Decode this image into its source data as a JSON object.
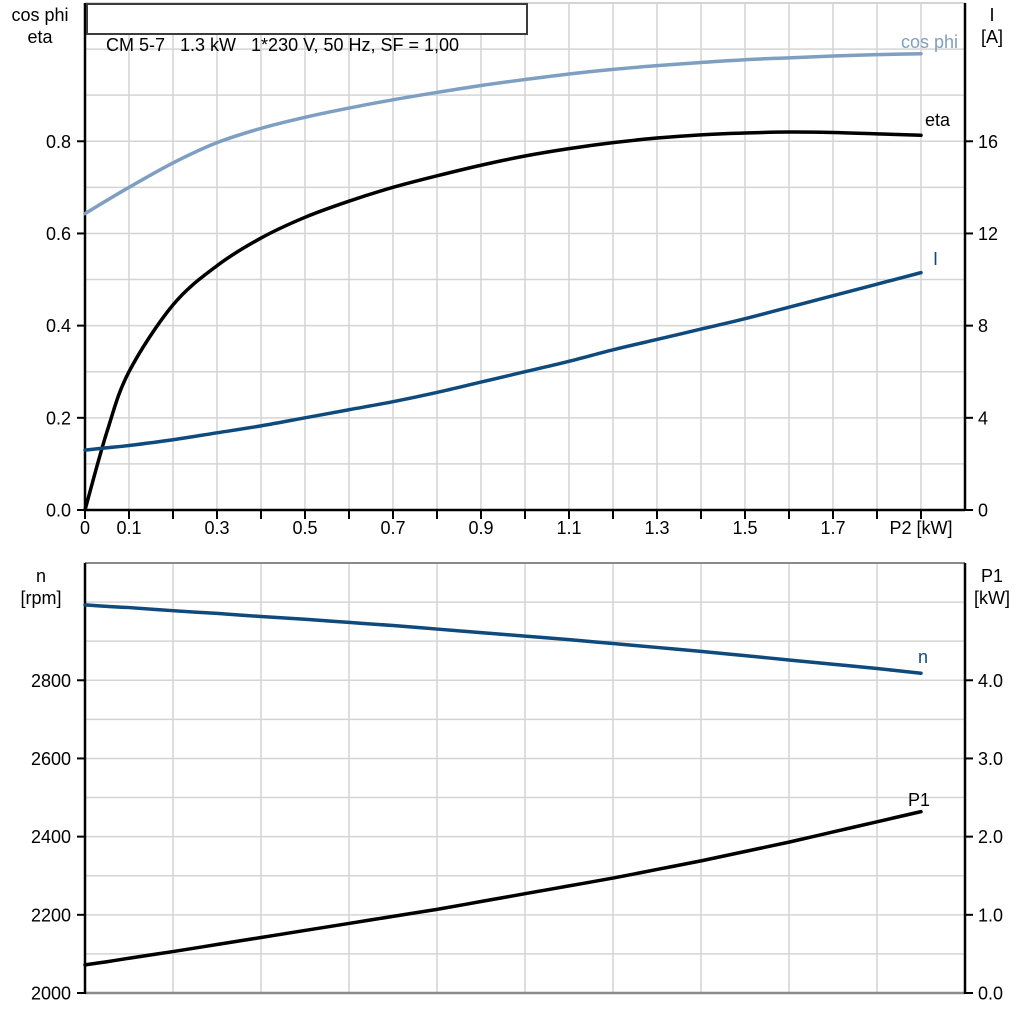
{
  "title": "CM 5-7   1.3 kW   1*230 V, 50 Hz, SF = 1,00",
  "colors": {
    "light_blue": "#7e9fc1",
    "dark_blue": "#0f4a7d",
    "black": "#000000",
    "gridline": "#d4d4d4",
    "gray_frame": "#8a8a8a"
  },
  "upper_left_axis_title": "cos phi\neta",
  "upper_right_axis_title": "I\n[A]",
  "lower_left_axis_title": "n\n[rpm]",
  "lower_right_axis_title": "P1\n[kW]",
  "chart_data": [
    {
      "type": "line",
      "title": "CM 5-7   1.3 kW   1*230 V, 50 Hz, SF = 1,00",
      "xlabel": "P2 [kW]",
      "xlim": [
        0,
        2.0
      ],
      "grid_x_step": 0.1,
      "x_tick_step": 0.1,
      "x_tick_labels": [
        {
          "v": 0,
          "t": "0"
        },
        {
          "v": 0.1,
          "t": "0.1"
        },
        {
          "v": 0.3,
          "t": "0.3"
        },
        {
          "v": 0.5,
          "t": "0.5"
        },
        {
          "v": 0.7,
          "t": "0.7"
        },
        {
          "v": 0.9,
          "t": "0.9"
        },
        {
          "v": 1.1,
          "t": "1.1"
        },
        {
          "v": 1.3,
          "t": "1.3"
        },
        {
          "v": 1.5,
          "t": "1.5"
        },
        {
          "v": 1.7,
          "t": "1.7"
        }
      ],
      "xlabel_at": 1.9,
      "left_axis": {
        "label": "cos phi / eta",
        "lim": [
          0,
          1.1
        ],
        "grid_step": 0.1,
        "ticks": [
          {
            "v": 0.0,
            "t": "0.0"
          },
          {
            "v": 0.2,
            "t": "0.2"
          },
          {
            "v": 0.4,
            "t": "0.4"
          },
          {
            "v": 0.6,
            "t": "0.6"
          },
          {
            "v": 0.8,
            "t": "0.8"
          }
        ]
      },
      "right_axis": {
        "label": "I [A]",
        "lim": [
          0,
          22
        ],
        "ticks": [
          {
            "v": 0,
            "t": "0"
          },
          {
            "v": 4,
            "t": "4"
          },
          {
            "v": 8,
            "t": "8"
          },
          {
            "v": 12,
            "t": "12"
          },
          {
            "v": 16,
            "t": "16"
          }
        ]
      },
      "x": [
        0,
        0.05,
        0.1,
        0.2,
        0.3,
        0.4,
        0.5,
        0.6,
        0.7,
        0.8,
        0.9,
        1.0,
        1.1,
        1.2,
        1.3,
        1.4,
        1.5,
        1.6,
        1.7,
        1.8,
        1.9
      ],
      "series": [
        {
          "name": "cos phi",
          "axis": "left",
          "color": "#7e9fc1",
          "label_x": 958,
          "label_y": 48,
          "values": [
            0.643,
            0.672,
            0.7,
            0.753,
            0.797,
            0.828,
            0.852,
            0.872,
            0.89,
            0.906,
            0.921,
            0.934,
            0.946,
            0.956,
            0.964,
            0.971,
            0.977,
            0.981,
            0.985,
            0.988,
            0.99
          ]
        },
        {
          "name": "eta",
          "axis": "left",
          "color": "#000000",
          "label_x": 950,
          "label_y": 126,
          "values": [
            0,
            0.17,
            0.3,
            0.445,
            0.53,
            0.59,
            0.635,
            0.67,
            0.7,
            0.725,
            0.748,
            0.768,
            0.784,
            0.797,
            0.807,
            0.814,
            0.818,
            0.82,
            0.819,
            0.816,
            0.813
          ]
        },
        {
          "name": "I",
          "axis": "right",
          "color": "#0f4a7d",
          "label_x": 938,
          "label_y": 265,
          "values": [
            2.6,
            2.7,
            2.8,
            3.05,
            3.35,
            3.65,
            4.0,
            4.35,
            4.7,
            5.1,
            5.55,
            6.0,
            6.45,
            6.95,
            7.4,
            7.85,
            8.3,
            8.8,
            9.3,
            9.8,
            10.3
          ]
        }
      ]
    },
    {
      "type": "line",
      "title": "",
      "xlabel": "",
      "xlim": [
        0,
        2.0
      ],
      "grid_x_step": 0.2,
      "x_tick_step": 0,
      "x_tick_labels": [],
      "left_axis": {
        "label": "n [rpm]",
        "lim": [
          2000,
          3100
        ],
        "grid_step": 100,
        "ticks": [
          {
            "v": 2000,
            "t": "2000"
          },
          {
            "v": 2200,
            "t": "2200"
          },
          {
            "v": 2400,
            "t": "2400"
          },
          {
            "v": 2600,
            "t": "2600"
          },
          {
            "v": 2800,
            "t": "2800"
          }
        ]
      },
      "right_axis": {
        "label": "P1 [kW]",
        "lim": [
          0,
          5.5
        ],
        "ticks": [
          {
            "v": 0,
            "t": "0.0"
          },
          {
            "v": 1,
            "t": "1.0"
          },
          {
            "v": 2,
            "t": "2.0"
          },
          {
            "v": 3,
            "t": "3.0"
          },
          {
            "v": 4,
            "t": "4.0"
          }
        ]
      },
      "x": [
        0,
        0.05,
        0.1,
        0.2,
        0.3,
        0.4,
        0.5,
        0.6,
        0.7,
        0.8,
        0.9,
        1.0,
        1.1,
        1.2,
        1.3,
        1.4,
        1.5,
        1.6,
        1.7,
        1.8,
        1.9
      ],
      "series": [
        {
          "name": "n",
          "axis": "left",
          "color": "#0f4a7d",
          "label_x": 928,
          "label_y": 663,
          "values": [
            2993,
            2989,
            2986,
            2978,
            2971,
            2963,
            2956,
            2948,
            2940,
            2931,
            2922,
            2913,
            2904,
            2894,
            2884,
            2874,
            2863,
            2852,
            2841,
            2830,
            2818
          ]
        },
        {
          "name": "P1",
          "axis": "right",
          "color": "#000000",
          "label_x": 930,
          "label_y": 806,
          "values": [
            0.36,
            0.4,
            0.445,
            0.53,
            0.62,
            0.71,
            0.8,
            0.89,
            0.98,
            1.07,
            1.17,
            1.27,
            1.37,
            1.47,
            1.58,
            1.69,
            1.81,
            1.93,
            2.06,
            2.19,
            2.32
          ]
        }
      ]
    }
  ]
}
